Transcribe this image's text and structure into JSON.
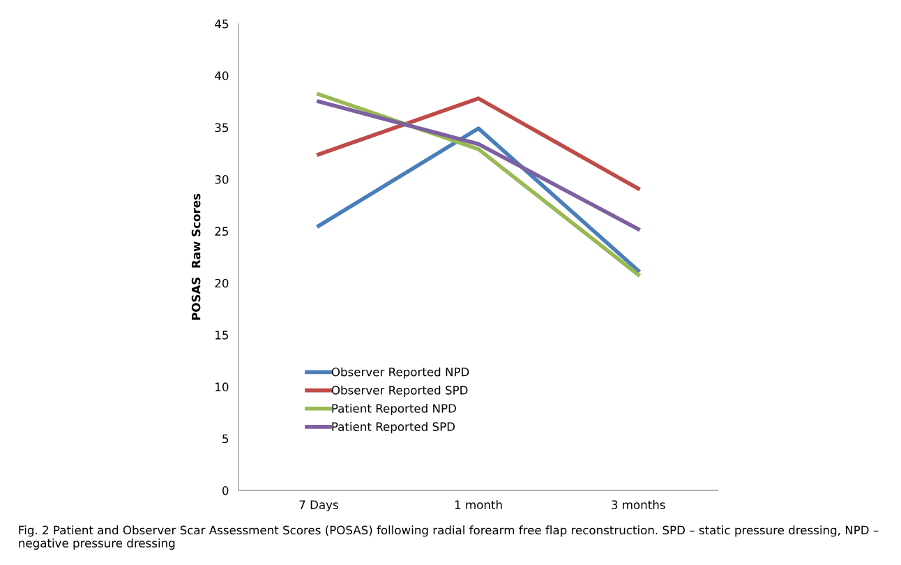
{
  "chart_data": {
    "type": "line",
    "ylabel": "POSAS  Raw Scores",
    "categories": [
      "7 Days",
      "1 month",
      "3 months"
    ],
    "series": [
      {
        "name": "Observer Reported NPD",
        "color": "#4a7ebb",
        "values": [
          25.5,
          34.9,
          21.2
        ]
      },
      {
        "name": "Observer Reported SPD",
        "color": "#be4b48",
        "values": [
          32.4,
          37.8,
          29.1
        ]
      },
      {
        "name": "Patient Reported NPD",
        "color": "#98b954",
        "values": [
          38.2,
          32.9,
          20.8
        ]
      },
      {
        "name": "Patient Reported SPD",
        "color": "#7d60a0",
        "values": [
          37.5,
          33.4,
          25.2
        ]
      }
    ],
    "ylim": [
      0,
      45
    ],
    "yticks": [
      0,
      5,
      10,
      15,
      20,
      25,
      30,
      35,
      40,
      45
    ],
    "grid": false,
    "legend": "bottom left",
    "marker": "none",
    "line_style": "solid",
    "annotations": [
      "Fig. 2 Patient and Observer Scar Assessment Scores (POSAS) following radial forearm free flap reconstruction. SPD – static pressure dressing, NPD – negative pressure dressing"
    ]
  }
}
